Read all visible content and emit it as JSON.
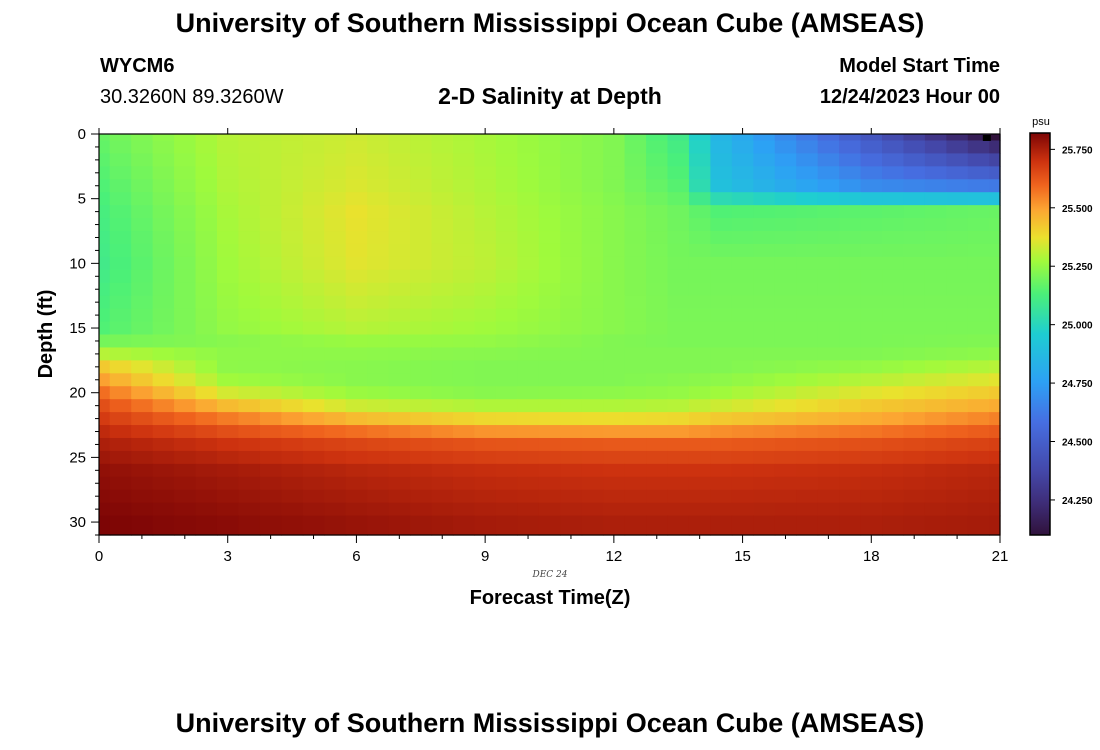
{
  "header": {
    "title": "University of Southern Mississippi Ocean Cube (AMSEAS)",
    "station_id": "WYCM6",
    "coordinates": "30.3260N  89.3260W",
    "subtitle": "2-D Salinity at Depth",
    "model_start_label": "Model Start Time",
    "model_start_value": "12/24/2023 Hour 00"
  },
  "footer": {
    "title": "University of Southern Mississippi Ocean Cube (AMSEAS)"
  },
  "chart_data": {
    "type": "heatmap",
    "title": "2-D Salinity at Depth",
    "xlabel": "Forecast Time(Z)",
    "ylabel": "Depth (ft)",
    "date_label": "DEC 24",
    "xlim": [
      0,
      21
    ],
    "ylim": [
      0,
      31
    ],
    "x_ticks": [
      0,
      3,
      6,
      9,
      12,
      15,
      18,
      21
    ],
    "y_ticks": [
      0,
      5,
      10,
      15,
      20,
      25,
      30
    ],
    "x_step_hours": 0.5,
    "depth_levels_ft": [
      0,
      1,
      2,
      3,
      4,
      5,
      6,
      7,
      8,
      9,
      10,
      11,
      12,
      13,
      14,
      15,
      16,
      17,
      18,
      19,
      20,
      21,
      22,
      23,
      24,
      25,
      26,
      27,
      28,
      29,
      30
    ],
    "colorbar": {
      "unit": "psu",
      "vmin": 24.1,
      "vmax": 25.82,
      "ticks": [
        24.25,
        24.5,
        24.75,
        25.0,
        25.25,
        25.5,
        25.75
      ],
      "tick_labels": [
        "24.250",
        "24.500",
        "24.750",
        "25.000",
        "25.250",
        "25.500",
        "25.750"
      ]
    },
    "salinity_psu_anchors": {
      "times_h": [
        0,
        3,
        6,
        9,
        12,
        13.5,
        14.5,
        18,
        21
      ],
      "depths_ft": [
        0,
        4,
        6,
        10,
        15,
        16,
        17,
        18,
        19,
        20,
        21,
        22,
        23,
        24,
        26,
        30
      ],
      "values": [
        [
          25.18,
          25.3,
          25.33,
          25.28,
          25.22,
          25.1,
          24.85,
          24.45,
          24.1
        ],
        [
          25.14,
          25.29,
          25.35,
          25.29,
          25.22,
          25.15,
          24.9,
          24.68,
          24.62
        ],
        [
          25.12,
          25.28,
          25.37,
          25.3,
          25.23,
          25.19,
          25.14,
          25.16,
          25.18
        ],
        [
          25.1,
          25.27,
          25.36,
          25.31,
          25.23,
          25.2,
          25.2,
          25.2,
          25.2
        ],
        [
          25.14,
          25.25,
          25.3,
          25.27,
          25.23,
          25.21,
          25.21,
          25.21,
          25.21
        ],
        [
          25.2,
          25.23,
          25.26,
          25.25,
          25.22,
          25.21,
          25.21,
          25.21,
          25.22
        ],
        [
          25.3,
          25.24,
          25.24,
          25.23,
          25.22,
          25.22,
          25.22,
          25.22,
          25.24
        ],
        [
          25.42,
          25.24,
          25.23,
          25.22,
          25.22,
          25.22,
          25.22,
          25.25,
          25.3
        ],
        [
          25.5,
          25.27,
          25.23,
          25.22,
          25.22,
          25.23,
          25.24,
          25.3,
          25.36
        ],
        [
          25.58,
          25.34,
          25.26,
          25.23,
          25.24,
          25.25,
          25.27,
          25.36,
          25.42
        ],
        [
          25.64,
          25.45,
          25.33,
          25.29,
          25.29,
          25.3,
          25.33,
          25.42,
          25.48
        ],
        [
          25.68,
          25.56,
          25.45,
          25.39,
          25.38,
          25.39,
          25.42,
          25.48,
          25.55
        ],
        [
          25.72,
          25.64,
          25.58,
          25.52,
          25.51,
          25.51,
          25.53,
          25.57,
          25.62
        ],
        [
          25.75,
          25.7,
          25.66,
          25.63,
          25.62,
          25.62,
          25.62,
          25.64,
          25.67
        ],
        [
          25.79,
          25.76,
          25.73,
          25.71,
          25.7,
          25.7,
          25.7,
          25.71,
          25.73
        ],
        [
          25.82,
          25.8,
          25.78,
          25.76,
          25.75,
          25.75,
          25.75,
          25.75,
          25.76
        ]
      ]
    }
  },
  "colors": {
    "background": "#ffffff",
    "axis": "#000000",
    "text": "#000000"
  }
}
